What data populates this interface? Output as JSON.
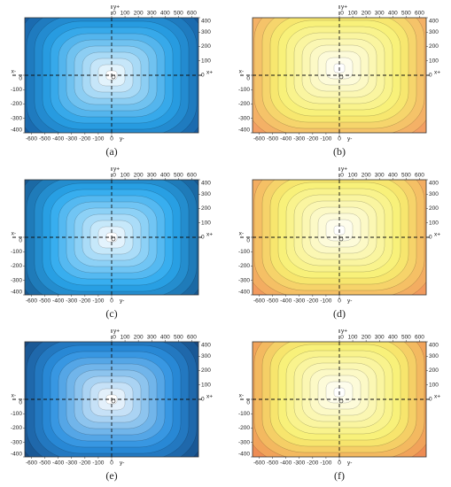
{
  "chart_data": [
    {
      "type": "contour",
      "label": "(a)",
      "color_center": "#ffffff",
      "color_edge": "#0a2a6e",
      "color_mid": "#29a3e8",
      "xlim": [
        -650,
        650
      ],
      "ylim": [
        -400,
        400
      ],
      "xticks_top": [
        0,
        100,
        200,
        300,
        400,
        500,
        600
      ],
      "xticks_bottom": [
        -600,
        -500,
        -400,
        -300,
        -200,
        -100,
        0
      ],
      "yticks_right": [
        400,
        300,
        200,
        100,
        0
      ],
      "yticks_left": [
        0,
        -100,
        -200,
        -300,
        -400
      ],
      "x_pos_label": "x+",
      "x_neg_label": "x-",
      "y_pos_label": "y+",
      "y_neg_label": "y-"
    },
    {
      "type": "contour",
      "label": "(b)",
      "color_center": "#ffffff",
      "color_edge": "#f0695a",
      "color_mid": "#f7f070",
      "xlim": [
        -650,
        650
      ],
      "ylim": [
        -400,
        400
      ],
      "xticks_top": [
        0,
        100,
        200,
        300,
        400,
        500,
        600
      ],
      "xticks_bottom": [
        -600,
        -500,
        -400,
        -300,
        -200,
        -100,
        0
      ],
      "yticks_right": [
        400,
        300,
        200,
        100,
        0
      ],
      "yticks_left": [
        0,
        -100,
        -200,
        -300,
        -400
      ],
      "x_pos_label": "x+",
      "x_neg_label": "x-",
      "y_pos_label": "y+",
      "y_neg_label": "y-"
    },
    {
      "type": "contour",
      "label": "(c)",
      "color_center": "#ffffff",
      "color_edge": "#0a2050",
      "color_mid": "#2aa8ee",
      "xlim": [
        -650,
        650
      ],
      "ylim": [
        -400,
        400
      ],
      "xticks_top": [
        0,
        100,
        200,
        300,
        400,
        500,
        600
      ],
      "xticks_bottom": [
        -600,
        -500,
        -400,
        -300,
        -200,
        -100,
        0
      ],
      "yticks_right": [
        400,
        300,
        200,
        100,
        0
      ],
      "yticks_left": [
        0,
        -100,
        -200,
        -300,
        -400
      ],
      "x_pos_label": "x+",
      "x_neg_label": "x-",
      "y_pos_label": "y+",
      "y_neg_label": "y-"
    },
    {
      "type": "contour",
      "label": "(d)",
      "color_center": "#ffffff",
      "color_edge": "#ee6050",
      "color_mid": "#f8f070",
      "xlim": [
        -650,
        650
      ],
      "ylim": [
        -400,
        400
      ],
      "xticks_top": [
        0,
        100,
        200,
        300,
        400,
        500,
        600
      ],
      "xticks_bottom": [
        -600,
        -500,
        -400,
        -300,
        -200,
        -100,
        0
      ],
      "yticks_right": [
        400,
        300,
        200,
        100,
        0
      ],
      "yticks_left": [
        0,
        -100,
        -200,
        -300,
        -400
      ],
      "x_pos_label": "x+",
      "x_neg_label": "x-",
      "y_pos_label": "y+",
      "y_neg_label": "y-"
    },
    {
      "type": "contour",
      "label": "(e)",
      "color_center": "#ffffff",
      "color_edge": "#081840",
      "color_mid": "#2a90e0",
      "xlim": [
        -650,
        650
      ],
      "ylim": [
        -400,
        400
      ],
      "xticks_top": [
        0,
        100,
        200,
        300,
        400,
        500,
        600
      ],
      "xticks_bottom": [
        -600,
        -500,
        -400,
        -300,
        -200,
        -100,
        0
      ],
      "yticks_right": [
        400,
        300,
        200,
        100,
        0
      ],
      "yticks_left": [
        0,
        -100,
        -200,
        -300,
        -400
      ],
      "x_pos_label": "x+",
      "x_neg_label": "x-",
      "y_pos_label": "y+",
      "y_neg_label": "y-"
    },
    {
      "type": "contour",
      "label": "(f)",
      "color_center": "#ffffff",
      "color_edge": "#e84a40",
      "color_mid": "#f8f070",
      "xlim": [
        -650,
        650
      ],
      "ylim": [
        -400,
        400
      ],
      "xticks_top": [
        0,
        100,
        200,
        300,
        400,
        500,
        600
      ],
      "xticks_bottom": [
        -600,
        -500,
        -400,
        -300,
        -200,
        -100,
        0
      ],
      "yticks_right": [
        400,
        300,
        200,
        100,
        0
      ],
      "yticks_left": [
        0,
        -100,
        -200,
        -300,
        -400
      ],
      "x_pos_label": "x+",
      "x_neg_label": "x-",
      "y_pos_label": "y+",
      "y_neg_label": "y-"
    }
  ]
}
